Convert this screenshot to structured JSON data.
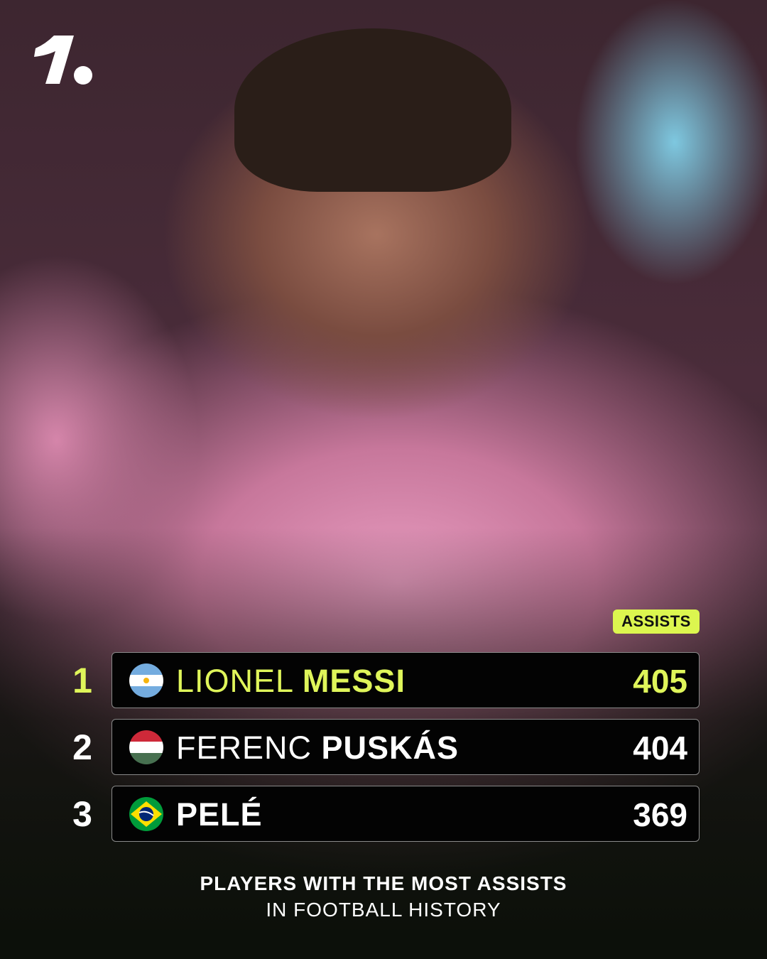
{
  "brand": {
    "logo": "1. (OneFootball logo)"
  },
  "badge": {
    "label": "ASSISTS",
    "color": "#dcf64f"
  },
  "rows": [
    {
      "rank": "1",
      "first": "LIONEL",
      "last": "MESSI",
      "value": "405",
      "flag": "argentina-flag",
      "highlight": true
    },
    {
      "rank": "2",
      "first": "FERENC",
      "last": "PUSKÁS",
      "value": "404",
      "flag": "hungary-flag",
      "highlight": false
    },
    {
      "rank": "3",
      "first": "",
      "last": "PELÉ",
      "value": "369",
      "flag": "brazil-flag",
      "highlight": false
    }
  ],
  "footer": {
    "line1": "PLAYERS WITH THE MOST ASSISTS",
    "line2": "IN FOOTBALL HISTORY"
  },
  "colors": {
    "accent": "#dff55a",
    "row_bg": "#030303"
  }
}
